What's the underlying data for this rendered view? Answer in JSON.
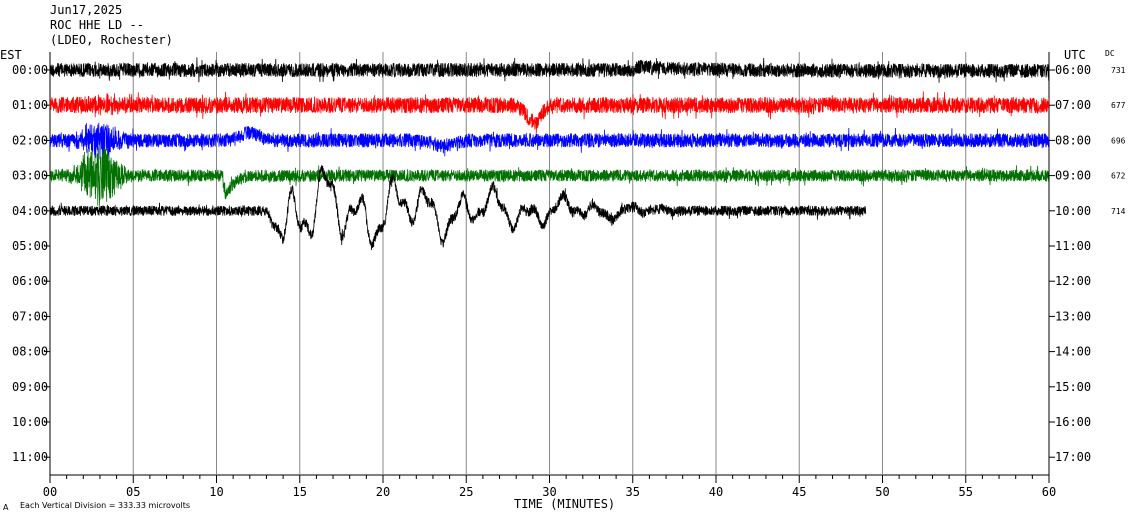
{
  "header": {
    "date": "Jun17,2025",
    "station": "ROC HHE LD --",
    "network": "(LDEO, Rochester)"
  },
  "left_zone": "EST",
  "right_zone": "UTC",
  "dc_label": "DC",
  "xlabel": "TIME (MINUTES)",
  "footer_text": "Each Vertical Division =  333.33 microvolts",
  "footer_mark": "A",
  "colors": {
    "row0": "#000000",
    "row1": "#ff0000",
    "row2": "#0000ff",
    "row3": "#007000",
    "row4": "#000000"
  },
  "chart_data": {
    "type": "line",
    "title": "ROC HHE LD --",
    "xlabel": "TIME (MINUTES)",
    "xlim": [
      0,
      60
    ],
    "x_ticks": [
      "00",
      "05",
      "10",
      "15",
      "20",
      "25",
      "30",
      "35",
      "40",
      "45",
      "50",
      "55",
      "60"
    ],
    "left_ticks": [
      "00:00",
      "01:00",
      "02:00",
      "03:00",
      "04:00",
      "05:00",
      "06:00",
      "07:00",
      "08:00",
      "09:00",
      "10:00",
      "11:00"
    ],
    "right_ticks": [
      "06:00",
      "07:00",
      "08:00",
      "09:00",
      "10:00",
      "11:00",
      "12:00",
      "13:00",
      "14:00",
      "15:00",
      "16:00",
      "17:00"
    ],
    "dc_values": [
      "731",
      "677",
      "696",
      "672",
      "714"
    ],
    "vertical_division_microvolts": 333.33,
    "series": [
      {
        "row": 0,
        "start_min": 0,
        "end_min": 60,
        "color": "#000000",
        "noise": 7,
        "events": [
          {
            "type": "step",
            "at": 35.2,
            "amp": -4,
            "decay": 4
          }
        ]
      },
      {
        "row": 1,
        "start_min": 0,
        "end_min": 60,
        "color": "#ff0000",
        "noise": 8,
        "events": [
          {
            "type": "dip",
            "at": 29.0,
            "amp": 20,
            "width": 1.2
          },
          {
            "type": "burst",
            "at": 3.2,
            "amp": 6,
            "width": 1.5
          }
        ]
      },
      {
        "row": 2,
        "start_min": 0,
        "end_min": 60,
        "color": "#0000ff",
        "noise": 7,
        "events": [
          {
            "type": "burst",
            "at": 3.0,
            "amp": 18,
            "width": 1.6
          },
          {
            "type": "bump",
            "at": 12.0,
            "amp": -8,
            "width": 0.5
          },
          {
            "type": "bump",
            "at": 23.7,
            "amp": 6,
            "width": 0.6
          }
        ]
      },
      {
        "row": 3,
        "start_min": 0,
        "end_min": 60,
        "color": "#007000",
        "noise": 6,
        "events": [
          {
            "type": "burst",
            "at": 3.0,
            "amp": 30,
            "width": 1.8
          },
          {
            "type": "drop",
            "at": 10.3,
            "amp": 35,
            "width": 1.5
          }
        ]
      },
      {
        "row": 4,
        "start_min": 0,
        "end_min": 49,
        "color": "#000000",
        "noise": 5,
        "events": [
          {
            "type": "surface",
            "from": 13,
            "to": 38,
            "amp": 22
          }
        ]
      }
    ]
  }
}
